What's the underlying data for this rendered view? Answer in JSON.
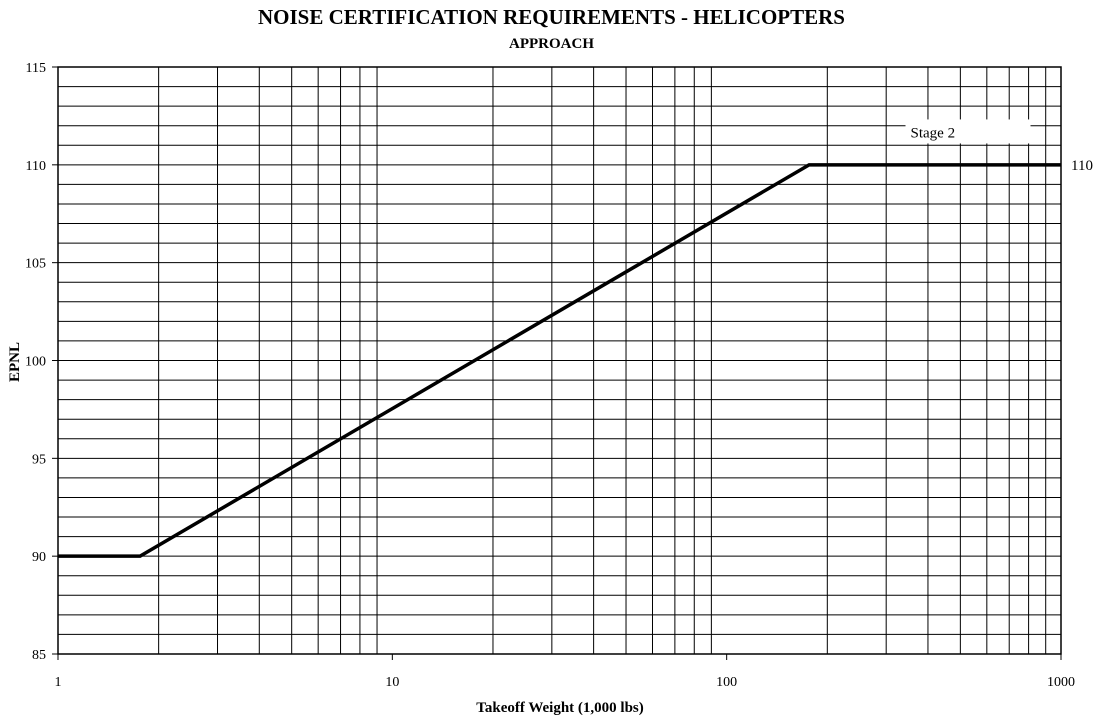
{
  "chart_data": {
    "type": "line",
    "title": "NOISE CERTIFICATION REQUIREMENTS - HELICOPTERS",
    "subtitle": "APPROACH",
    "xlabel": "Takeoff Weight (1,000 lbs)",
    "ylabel": "EPNL",
    "x_scale": "log",
    "xlim": [
      1,
      1000
    ],
    "ylim": [
      85,
      115
    ],
    "x_ticks": [
      "1",
      "10",
      "100",
      "1000"
    ],
    "y_ticks": [
      "85",
      "90",
      "95",
      "100",
      "105",
      "110",
      "115"
    ],
    "grid": true,
    "series": [
      {
        "x": [
          1,
          1.76,
          176.4,
          1000
        ],
        "y": [
          90,
          90,
          110,
          110
        ]
      }
    ],
    "annotations": [
      {
        "text": "Stage 2",
        "x": 380,
        "y": 111.4
      },
      {
        "text": "110",
        "side": "right",
        "y": 110
      }
    ]
  }
}
